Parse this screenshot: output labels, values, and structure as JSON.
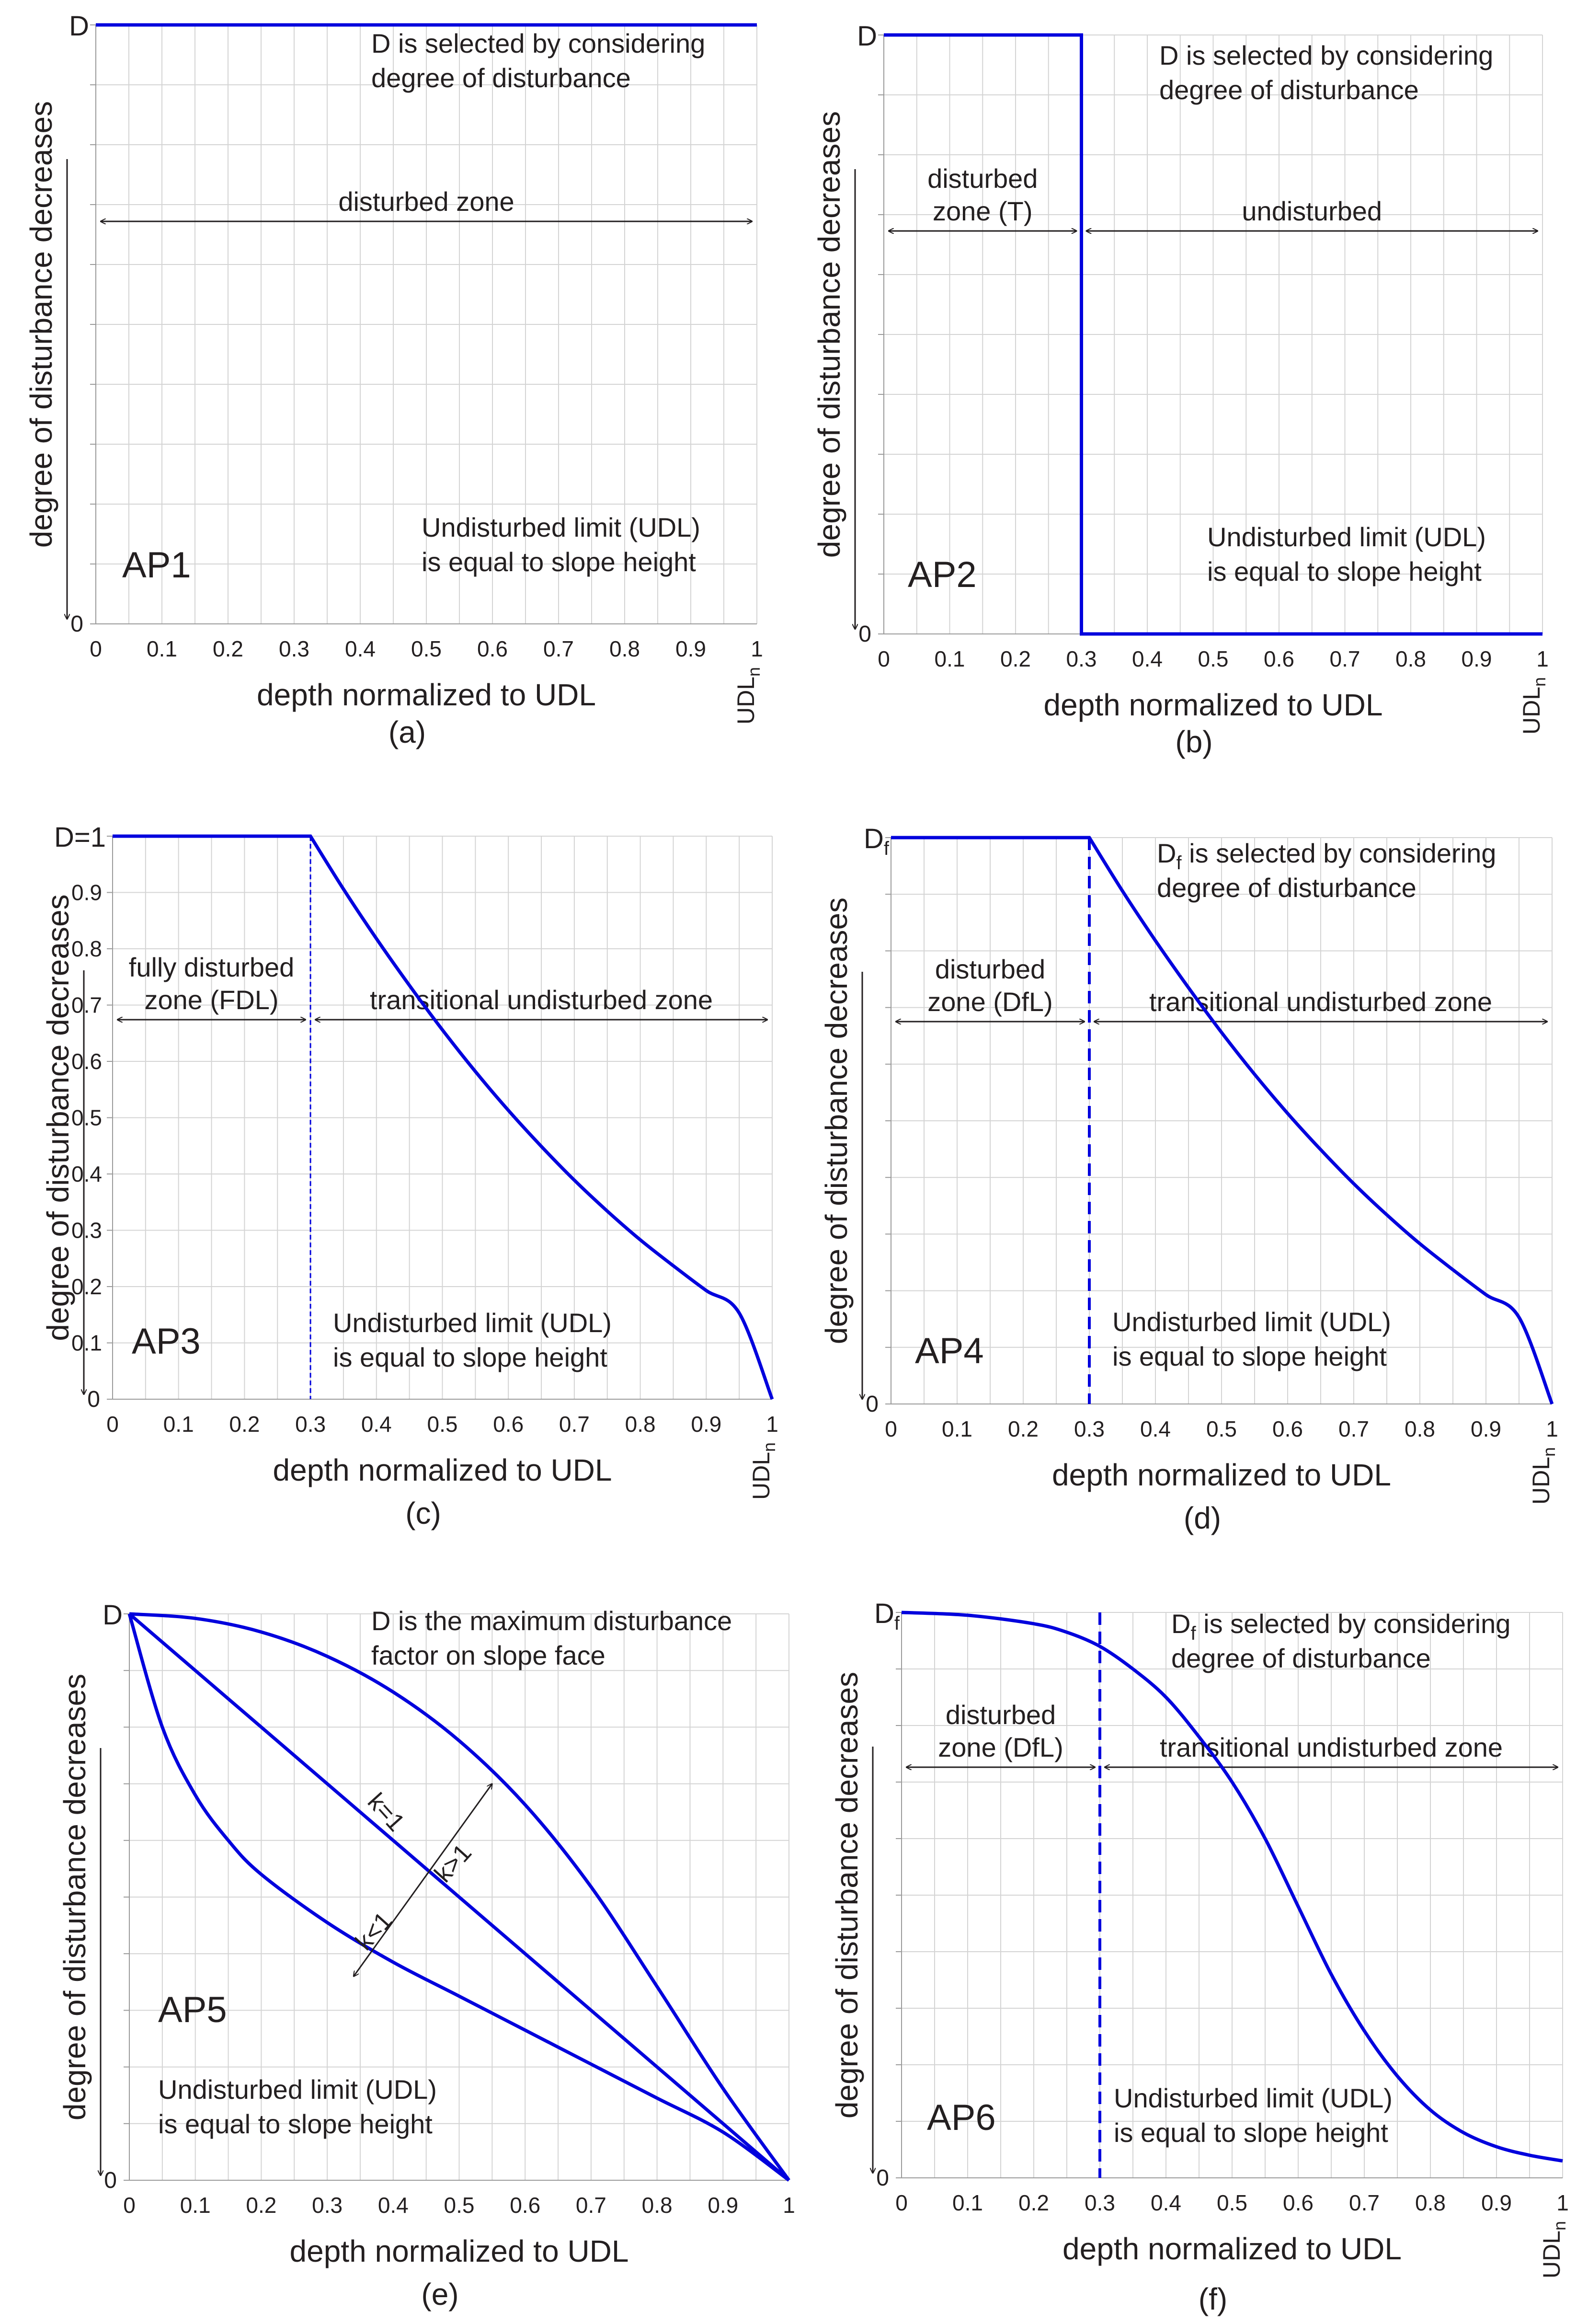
{
  "colors": {
    "curve": "#0000dd",
    "grid": "#d4d4d4",
    "text": "#231f20",
    "arrow": "#231f20"
  },
  "chart_data": [
    {
      "id": "a",
      "type": "line",
      "panel_label": "AP1",
      "caption": "(a)",
      "xlabel": "depth normalized to UDL",
      "ylabel": "degree of disturbance decreases",
      "x_ticks": [
        "0",
        "0.1",
        "0.2",
        "0.3",
        "0.4",
        "0.5",
        "0.6",
        "0.7",
        "0.8",
        "0.9",
        "1"
      ],
      "x_end_label": "UDL",
      "x_end_sub": "n",
      "y_top_label": "D",
      "y_top_sub": "",
      "y_bottom_label": "0",
      "y_ticks": [],
      "xlim": [
        0,
        1
      ],
      "ylim": [
        0,
        1
      ],
      "series": [
        {
          "name": "D",
          "x": [
            0,
            1
          ],
          "y": [
            1,
            1
          ]
        }
      ],
      "vline": null,
      "notes": [
        "D is selected by considering",
        "degree of disturbance"
      ],
      "udl_note": [
        "Undisturbed limit (UDL)",
        "is equal to slope height"
      ],
      "zones": [
        {
          "label": [
            "disturbed zone"
          ],
          "from": 0,
          "to": 1
        }
      ],
      "k_labels": null
    },
    {
      "id": "b",
      "type": "line",
      "panel_label": "AP2",
      "caption": "(b)",
      "xlabel": "depth normalized to UDL",
      "ylabel": "degree of disturbance decreases",
      "x_ticks": [
        "0",
        "0.1",
        "0.2",
        "0.3",
        "0.4",
        "0.5",
        "0.6",
        "0.7",
        "0.8",
        "0.9",
        "1"
      ],
      "x_end_label": "UDL",
      "x_end_sub": "n",
      "y_top_label": "D",
      "y_top_sub": "",
      "y_bottom_label": "0",
      "y_ticks": [],
      "xlim": [
        0,
        1
      ],
      "ylim": [
        0,
        1
      ],
      "series": [
        {
          "name": "D",
          "x": [
            0,
            0.3,
            0.3,
            1
          ],
          "y": [
            1,
            1,
            0,
            0
          ]
        }
      ],
      "vline": {
        "x": 0.3,
        "style": "thick"
      },
      "notes": [
        "D is selected by considering",
        "degree of disturbance"
      ],
      "udl_note": [
        "Undisturbed limit (UDL)",
        "is equal to slope height"
      ],
      "zones": [
        {
          "label": [
            "disturbed",
            "zone (T)"
          ],
          "from": 0,
          "to": 0.3
        },
        {
          "label": [
            "undisturbed"
          ],
          "from": 0.3,
          "to": 1
        }
      ],
      "k_labels": null
    },
    {
      "id": "c",
      "type": "line",
      "panel_label": "AP3",
      "caption": "(c)",
      "xlabel": "depth normalized to UDL",
      "ylabel": "degree of disturbance decreases",
      "x_ticks": [
        "0",
        "0.1",
        "0.2",
        "0.3",
        "0.4",
        "0.5",
        "0.6",
        "0.7",
        "0.8",
        "0.9",
        "1"
      ],
      "x_end_label": "UDL",
      "x_end_sub": "n",
      "y_top_label": "D=1",
      "y_top_sub": "",
      "y_bottom_label": "0",
      "y_ticks": [
        "0.1",
        "0.2",
        "0.3",
        "0.4",
        "0.5",
        "0.6",
        "0.7",
        "0.8",
        "0.9"
      ],
      "xlim": [
        0,
        1
      ],
      "ylim": [
        0,
        1
      ],
      "series": [
        {
          "name": "D(x)",
          "x": [
            0,
            0.3,
            0.35,
            0.4,
            0.45,
            0.5,
            0.55,
            0.6,
            0.65,
            0.7,
            0.75,
            0.8,
            0.85,
            0.9,
            0.95,
            1
          ],
          "y": [
            1,
            1,
            0.906,
            0.818,
            0.735,
            0.656,
            0.582,
            0.513,
            0.449,
            0.389,
            0.334,
            0.283,
            0.237,
            0.193,
            0.153,
            0
          ]
        }
      ],
      "vline": {
        "x": 0.3,
        "style": "thin"
      },
      "notes": null,
      "udl_note": [
        "Undisturbed limit (UDL)",
        "is equal to slope height"
      ],
      "zones": [
        {
          "label": [
            "fully disturbed",
            "zone (FDL)"
          ],
          "from": 0,
          "to": 0.3
        },
        {
          "label": [
            "transitional undisturbed zone"
          ],
          "from": 0.3,
          "to": 1
        }
      ],
      "k_labels": null
    },
    {
      "id": "d",
      "type": "line",
      "panel_label": "AP4",
      "caption": "(d)",
      "xlabel": "depth normalized to UDL",
      "ylabel": "degree of disturbance decreases",
      "x_ticks": [
        "0",
        "0.1",
        "0.2",
        "0.3",
        "0.4",
        "0.5",
        "0.6",
        "0.7",
        "0.8",
        "0.9",
        "1"
      ],
      "x_end_label": "UDL",
      "x_end_sub": "n",
      "y_top_label": "D",
      "y_top_sub": "f",
      "y_bottom_label": "0",
      "y_ticks": [],
      "xlim": [
        0,
        1
      ],
      "ylim": [
        0,
        1
      ],
      "series": [
        {
          "name": "D(x)",
          "x": [
            0,
            0.3,
            0.35,
            0.4,
            0.45,
            0.5,
            0.55,
            0.6,
            0.65,
            0.7,
            0.75,
            0.8,
            0.85,
            0.9,
            0.95,
            1
          ],
          "y": [
            1,
            1,
            0.906,
            0.818,
            0.735,
            0.656,
            0.582,
            0.513,
            0.449,
            0.389,
            0.334,
            0.283,
            0.237,
            0.193,
            0.153,
            0
          ]
        }
      ],
      "vline": {
        "x": 0.3,
        "style": "thick"
      },
      "notes": [
        "D_f is selected by considering",
        "degree of disturbance"
      ],
      "udl_note": [
        "Undisturbed limit (UDL)",
        "is equal to slope height"
      ],
      "zones": [
        {
          "label": [
            "disturbed",
            "zone (DfL)"
          ],
          "from": 0,
          "to": 0.3
        },
        {
          "label": [
            "transitional undisturbed zone"
          ],
          "from": 0.3,
          "to": 1
        }
      ],
      "k_labels": null
    },
    {
      "id": "e",
      "type": "line",
      "panel_label": "AP5",
      "caption": "(e)",
      "xlabel": "depth normalized to UDL",
      "ylabel": "degree of disturbance decreases",
      "x_ticks": [
        "0",
        "0.1",
        "0.2",
        "0.3",
        "0.4",
        "0.5",
        "0.6",
        "0.7",
        "0.8",
        "0.9",
        "1"
      ],
      "x_end_label": "1",
      "x_end_sub": "",
      "y_top_label": "D",
      "y_top_sub": "",
      "y_bottom_label": "0",
      "y_ticks": [],
      "xlim": [
        0,
        1
      ],
      "ylim": [
        0,
        1
      ],
      "series": [
        {
          "name": "k>1",
          "x": [
            0,
            0.1,
            0.2,
            0.3,
            0.4,
            0.5,
            0.6,
            0.7,
            0.8,
            0.9,
            1
          ],
          "y": [
            1,
            0.992,
            0.968,
            0.925,
            0.862,
            0.776,
            0.663,
            0.518,
            0.342,
            0.162,
            0
          ]
        },
        {
          "name": "k=1",
          "x": [
            0,
            1
          ],
          "y": [
            1,
            0
          ]
        },
        {
          "name": "k<1",
          "x": [
            0,
            0.05,
            0.1,
            0.15,
            0.2,
            0.3,
            0.4,
            0.5,
            0.6,
            0.7,
            0.8,
            0.9,
            1
          ],
          "y": [
            1,
            0.8,
            0.68,
            0.6,
            0.54,
            0.455,
            0.385,
            0.325,
            0.265,
            0.205,
            0.145,
            0.085,
            0
          ]
        }
      ],
      "vline": null,
      "notes": [
        "D is the maximum disturbance",
        "factor on slope face"
      ],
      "udl_note": [
        "Undisturbed limit (UDL)",
        "is equal to slope height"
      ],
      "zones": [],
      "k_labels": [
        "k=1",
        "k>1",
        "k<1"
      ]
    },
    {
      "id": "f",
      "type": "line",
      "panel_label": "AP6",
      "caption": "(f)",
      "xlabel": "depth normalized to UDL",
      "ylabel": "degree of disturbance decreases",
      "x_ticks": [
        "0",
        "0.1",
        "0.2",
        "0.3",
        "0.4",
        "0.5",
        "0.6",
        "0.7",
        "0.8",
        "0.9",
        "1"
      ],
      "x_end_label": "UDL",
      "x_end_sub": "n",
      "y_top_label": "D",
      "y_top_sub": "f",
      "y_bottom_label": "0",
      "y_ticks": [],
      "xlim": [
        0,
        1
      ],
      "ylim": [
        0,
        1
      ],
      "series": [
        {
          "name": "D(x)",
          "x": [
            0,
            0.1,
            0.2,
            0.25,
            0.3,
            0.35,
            0.4,
            0.45,
            0.5,
            0.55,
            0.6,
            0.65,
            0.7,
            0.75,
            0.8,
            0.85,
            0.9,
            0.95,
            1
          ],
          "y": [
            1,
            0.995,
            0.98,
            0.965,
            0.94,
            0.9,
            0.85,
            0.78,
            0.7,
            0.6,
            0.48,
            0.36,
            0.26,
            0.18,
            0.12,
            0.08,
            0.055,
            0.04,
            0.03
          ]
        }
      ],
      "vline": {
        "x": 0.3,
        "style": "thick"
      },
      "notes": [
        "D_f is selected by considering",
        "degree of disturbance"
      ],
      "udl_note": [
        "Undisturbed limit (UDL)",
        "is equal to slope height"
      ],
      "zones": [
        {
          "label": [
            "disturbed",
            "zone (DfL)"
          ],
          "from": 0,
          "to": 0.3
        },
        {
          "label": [
            "transitional undisturbed zone"
          ],
          "from": 0.3,
          "to": 1
        }
      ],
      "k_labels": null
    }
  ]
}
